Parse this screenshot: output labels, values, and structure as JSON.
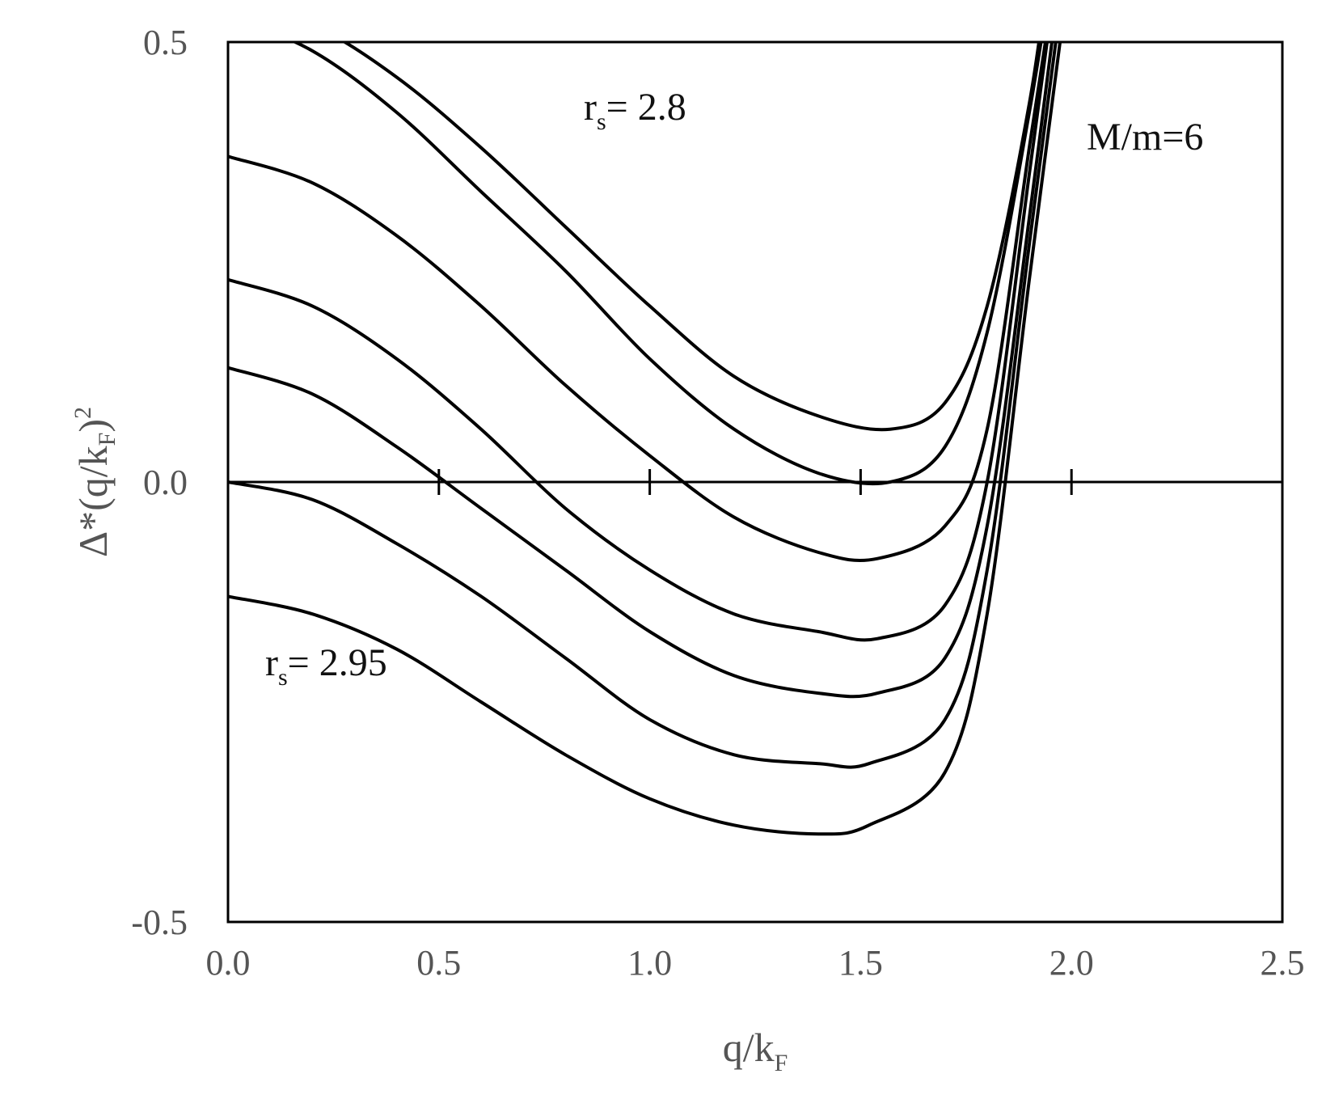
{
  "chart_data": {
    "type": "line",
    "title": "",
    "xlabel": "q/k",
    "xlabel_sub": "F",
    "ylabel": "Δ*(q/k",
    "ylabel_sub": "F",
    "ylabel_close": ")",
    "ylabel_sup": "2",
    "xlim": [
      0.0,
      2.5
    ],
    "ylim": [
      -0.5,
      0.5
    ],
    "x_ticks": [
      "0.0",
      "0.5",
      "1.0",
      "1.5",
      "2.0",
      "2.5"
    ],
    "y_ticks": [
      "-0.5",
      "0.0",
      "0.5"
    ],
    "zero_line_ticks": [
      0.5,
      1.0,
      1.5,
      2.0
    ],
    "grid": false,
    "line_color": "#000000",
    "annotations": {
      "top_curve": {
        "prefix": "r",
        "sub": "s",
        "text": "= 2.8"
      },
      "bottom_curve": {
        "prefix": "r",
        "sub": "s",
        "text": "= 2.95"
      },
      "mass_ratio": "M/m=6"
    },
    "series": [
      {
        "values": [
          [
            0.0,
            0.55
          ],
          [
            0.2,
            0.52
          ],
          [
            0.4,
            0.46
          ],
          [
            0.6,
            0.38
          ],
          [
            0.8,
            0.29
          ],
          [
            1.0,
            0.2
          ],
          [
            1.2,
            0.12
          ],
          [
            1.4,
            0.075
          ],
          [
            1.57,
            0.06
          ],
          [
            1.7,
            0.09
          ],
          [
            1.8,
            0.2
          ],
          [
            1.9,
            0.43
          ],
          [
            1.95,
            0.6
          ]
        ]
      },
      {
        "values": [
          [
            0.0,
            0.53
          ],
          [
            0.2,
            0.49
          ],
          [
            0.4,
            0.42
          ],
          [
            0.6,
            0.33
          ],
          [
            0.8,
            0.24
          ],
          [
            1.0,
            0.14
          ],
          [
            1.2,
            0.06
          ],
          [
            1.4,
            0.01
          ],
          [
            1.57,
            0.0
          ],
          [
            1.7,
            0.04
          ],
          [
            1.8,
            0.17
          ],
          [
            1.9,
            0.42
          ],
          [
            1.96,
            0.6
          ]
        ]
      },
      {
        "values": [
          [
            0.0,
            0.37
          ],
          [
            0.2,
            0.34
          ],
          [
            0.4,
            0.28
          ],
          [
            0.6,
            0.2
          ],
          [
            0.8,
            0.11
          ],
          [
            1.0,
            0.03
          ],
          [
            1.2,
            -0.04
          ],
          [
            1.4,
            -0.08
          ],
          [
            1.54,
            -0.087
          ],
          [
            1.7,
            -0.05
          ],
          [
            1.8,
            0.06
          ],
          [
            1.9,
            0.38
          ],
          [
            1.97,
            0.6
          ]
        ]
      },
      {
        "values": [
          [
            0.0,
            0.23
          ],
          [
            0.2,
            0.2
          ],
          [
            0.4,
            0.14
          ],
          [
            0.6,
            0.06
          ],
          [
            0.8,
            -0.03
          ],
          [
            1.0,
            -0.1
          ],
          [
            1.2,
            -0.15
          ],
          [
            1.4,
            -0.17
          ],
          [
            1.54,
            -0.178
          ],
          [
            1.7,
            -0.14
          ],
          [
            1.8,
            0.0
          ],
          [
            1.9,
            0.35
          ],
          [
            1.97,
            0.6
          ]
        ]
      },
      {
        "values": [
          [
            0.0,
            0.13
          ],
          [
            0.2,
            0.1
          ],
          [
            0.4,
            0.04
          ],
          [
            0.6,
            -0.03
          ],
          [
            0.8,
            -0.1
          ],
          [
            1.0,
            -0.17
          ],
          [
            1.2,
            -0.22
          ],
          [
            1.4,
            -0.24
          ],
          [
            1.54,
            -0.24
          ],
          [
            1.7,
            -0.2
          ],
          [
            1.8,
            -0.05
          ],
          [
            1.9,
            0.3
          ],
          [
            1.98,
            0.6
          ]
        ]
      },
      {
        "values": [
          [
            0.0,
            0.0
          ],
          [
            0.2,
            -0.02
          ],
          [
            0.4,
            -0.07
          ],
          [
            0.6,
            -0.13
          ],
          [
            0.8,
            -0.2
          ],
          [
            1.0,
            -0.27
          ],
          [
            1.2,
            -0.31
          ],
          [
            1.4,
            -0.32
          ],
          [
            1.52,
            -0.32
          ],
          [
            1.7,
            -0.27
          ],
          [
            1.8,
            -0.1
          ],
          [
            1.9,
            0.27
          ],
          [
            1.99,
            0.6
          ]
        ]
      },
      {
        "values": [
          [
            0.0,
            -0.13
          ],
          [
            0.2,
            -0.15
          ],
          [
            0.4,
            -0.19
          ],
          [
            0.6,
            -0.25
          ],
          [
            0.8,
            -0.31
          ],
          [
            1.0,
            -0.36
          ],
          [
            1.2,
            -0.39
          ],
          [
            1.4,
            -0.4
          ],
          [
            1.52,
            -0.39
          ],
          [
            1.7,
            -0.33
          ],
          [
            1.8,
            -0.15
          ],
          [
            1.9,
            0.23
          ],
          [
            2.0,
            0.6
          ]
        ]
      }
    ]
  }
}
